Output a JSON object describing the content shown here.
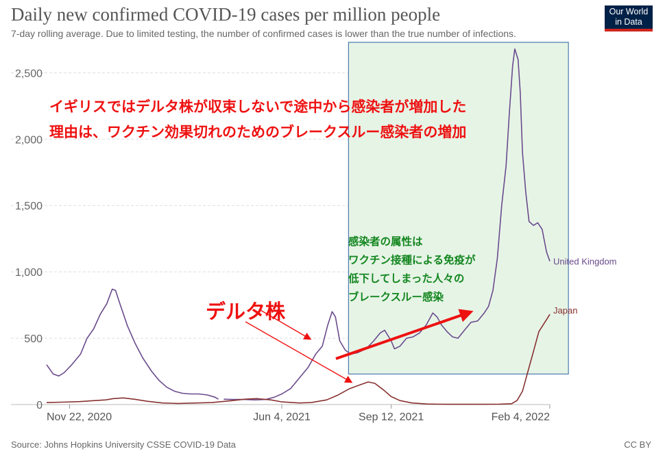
{
  "title": "Daily new confirmed COVID-19 cases per million people",
  "subtitle": "7-day rolling average. Due to limited testing, the number of confirmed cases is lower than the true number of infections.",
  "logo": {
    "line1": "Our World",
    "line2": "in Data"
  },
  "source": "Source: Johns Hopkins University CSSE COVID-19 Data",
  "license": "CC BY",
  "colors": {
    "uk": "#6a4a8c",
    "japan": "#883030",
    "highlight_fill": "#e6f4e6",
    "highlight_border": "#4a7ab0",
    "annotation_red": "#ee1111",
    "annotation_green": "#13861f"
  },
  "annotations": {
    "top_line1": "イギリスではデルタ株が収束しないで途中から感染者が増加した",
    "top_line2": "理由は、ワクチン効果切れのためのブレークスルー感染者の増加",
    "green_lines": [
      "感染者の属性は",
      "ワクチン接種による免疫が",
      "低下してしまった人々の",
      "ブレークスルー感染"
    ],
    "delta": "デルタ株"
  },
  "chart_data": {
    "type": "line",
    "title": "Daily new confirmed COVID-19 cases per million people",
    "x_start": "Nov 1, 2020",
    "x_end": "Feb 4, 2022",
    "x_ticks": [
      "Nov 22, 2020",
      "Jun 4, 2021",
      "Sep 12, 2021",
      "Feb 4, 2022"
    ],
    "ylim": [
      0,
      2600
    ],
    "y_ticks": [
      0,
      500,
      1000,
      1500,
      2000,
      2500
    ],
    "y_tick_labels": [
      "0",
      "500",
      "1,000",
      "1,500",
      "2,000",
      "2,500"
    ],
    "grid": true,
    "highlight_range": {
      "x_start": "Aug 4, 2021",
      "x_end": "Feb 21, 2022",
      "y_start": 230,
      "y_end": 2730
    },
    "series": [
      {
        "name": "United Kingdom",
        "points": [
          [
            "2020-11-01",
            300
          ],
          [
            "2020-11-07",
            230
          ],
          [
            "2020-11-12",
            215
          ],
          [
            "2020-11-17",
            240
          ],
          [
            "2020-11-24",
            300
          ],
          [
            "2020-12-02",
            380
          ],
          [
            "2020-12-08",
            500
          ],
          [
            "2020-12-14",
            570
          ],
          [
            "2020-12-20",
            680
          ],
          [
            "2020-12-26",
            760
          ],
          [
            "2020-12-31",
            870
          ],
          [
            "2021-01-03",
            860
          ],
          [
            "2021-01-07",
            760
          ],
          [
            "2021-01-14",
            590
          ],
          [
            "2021-01-21",
            460
          ],
          [
            "2021-01-28",
            350
          ],
          [
            "2021-02-05",
            250
          ],
          [
            "2021-02-12",
            180
          ],
          [
            "2021-02-19",
            130
          ],
          [
            "2021-02-26",
            100
          ],
          [
            "2021-03-05",
            85
          ],
          [
            "2021-03-12",
            80
          ],
          [
            "2021-03-20",
            80
          ],
          [
            "2021-03-28",
            72
          ],
          [
            "2021-04-04",
            55
          ],
          [
            "2021-04-07",
            40
          ],
          [
            "2021-04-09",
            null
          ],
          [
            "2021-04-12",
            40
          ],
          [
            "2021-04-20",
            38
          ],
          [
            "2021-05-01",
            38
          ],
          [
            "2021-05-10",
            35
          ],
          [
            "2021-05-20",
            38
          ],
          [
            "2021-05-28",
            55
          ],
          [
            "2021-06-04",
            80
          ],
          [
            "2021-06-12",
            120
          ],
          [
            "2021-06-20",
            200
          ],
          [
            "2021-06-28",
            280
          ],
          [
            "2021-07-05",
            380
          ],
          [
            "2021-07-11",
            440
          ],
          [
            "2021-07-16",
            600
          ],
          [
            "2021-07-20",
            700
          ],
          [
            "2021-07-23",
            660
          ],
          [
            "2021-07-27",
            480
          ],
          [
            "2021-08-01",
            410
          ],
          [
            "2021-08-06",
            380
          ],
          [
            "2021-08-12",
            390
          ],
          [
            "2021-08-20",
            420
          ],
          [
            "2021-08-27",
            480
          ],
          [
            "2021-09-02",
            540
          ],
          [
            "2021-09-06",
            560
          ],
          [
            "2021-09-12",
            480
          ],
          [
            "2021-09-15",
            420
          ],
          [
            "2021-09-20",
            440
          ],
          [
            "2021-09-26",
            500
          ],
          [
            "2021-10-02",
            510
          ],
          [
            "2021-10-08",
            540
          ],
          [
            "2021-10-14",
            600
          ],
          [
            "2021-10-20",
            690
          ],
          [
            "2021-10-24",
            660
          ],
          [
            "2021-10-28",
            600
          ],
          [
            "2021-11-02",
            550
          ],
          [
            "2021-11-07",
            510
          ],
          [
            "2021-11-12",
            500
          ],
          [
            "2021-11-18",
            560
          ],
          [
            "2021-11-24",
            620
          ],
          [
            "2021-11-30",
            630
          ],
          [
            "2021-12-06",
            690
          ],
          [
            "2021-12-10",
            740
          ],
          [
            "2021-12-14",
            860
          ],
          [
            "2021-12-18",
            1100
          ],
          [
            "2021-12-22",
            1500
          ],
          [
            "2021-12-26",
            1800
          ],
          [
            "2021-12-29",
            2200
          ],
          [
            "2022-01-01",
            2550
          ],
          [
            "2022-01-03",
            2680
          ],
          [
            "2022-01-06",
            2600
          ],
          [
            "2022-01-08",
            2350
          ],
          [
            "2022-01-10",
            1900
          ],
          [
            "2022-01-13",
            1600
          ],
          [
            "2022-01-16",
            1380
          ],
          [
            "2022-01-20",
            1350
          ],
          [
            "2022-01-24",
            1370
          ],
          [
            "2022-01-28",
            1320
          ],
          [
            "2022-02-01",
            1150
          ],
          [
            "2022-02-04",
            1080
          ]
        ]
      },
      {
        "name": "Japan",
        "points": [
          [
            "2020-11-01",
            15
          ],
          [
            "2020-11-15",
            18
          ],
          [
            "2020-12-01",
            22
          ],
          [
            "2020-12-15",
            30
          ],
          [
            "2020-12-25",
            35
          ],
          [
            "2021-01-01",
            45
          ],
          [
            "2021-01-10",
            50
          ],
          [
            "2021-01-20",
            40
          ],
          [
            "2021-02-01",
            25
          ],
          [
            "2021-02-15",
            12
          ],
          [
            "2021-03-01",
            8
          ],
          [
            "2021-04-01",
            15
          ],
          [
            "2021-04-20",
            30
          ],
          [
            "2021-05-01",
            40
          ],
          [
            "2021-05-12",
            45
          ],
          [
            "2021-05-25",
            35
          ],
          [
            "2021-06-04",
            20
          ],
          [
            "2021-06-20",
            12
          ],
          [
            "2021-07-01",
            15
          ],
          [
            "2021-07-15",
            35
          ],
          [
            "2021-07-25",
            70
          ],
          [
            "2021-08-05",
            120
          ],
          [
            "2021-08-15",
            150
          ],
          [
            "2021-08-22",
            170
          ],
          [
            "2021-08-28",
            160
          ],
          [
            "2021-09-05",
            110
          ],
          [
            "2021-09-12",
            60
          ],
          [
            "2021-09-20",
            30
          ],
          [
            "2021-10-01",
            12
          ],
          [
            "2021-10-15",
            4
          ],
          [
            "2021-11-01",
            2
          ],
          [
            "2021-12-01",
            2
          ],
          [
            "2021-12-20",
            3
          ],
          [
            "2021-12-31",
            6
          ],
          [
            "2022-01-05",
            30
          ],
          [
            "2022-01-10",
            100
          ],
          [
            "2022-01-15",
            250
          ],
          [
            "2022-01-20",
            400
          ],
          [
            "2022-01-25",
            550
          ],
          [
            "2022-02-01",
            640
          ],
          [
            "2022-02-04",
            680
          ]
        ]
      }
    ]
  }
}
